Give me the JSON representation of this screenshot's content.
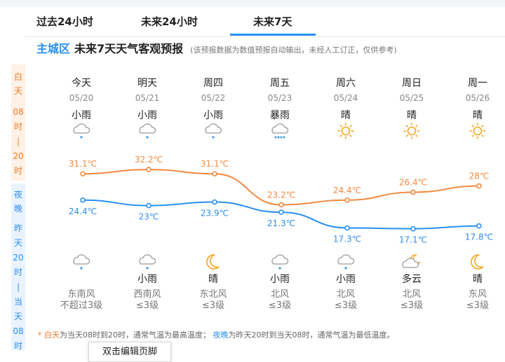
{
  "tabs": [
    "过去24小时",
    "未来24小时",
    "未来7天"
  ],
  "title": {
    "region": "主城区",
    "main": "未来7天天气客观预报",
    "note": "(该预报数据为数值预报自动输出，未经人工订正，仅供参考)"
  },
  "side": {
    "day": "白天",
    "day_time": [
      "08",
      "时",
      "|",
      "20",
      "时"
    ],
    "night": "夜晚",
    "night_time": [
      "昨",
      "天",
      "20",
      "时",
      "|",
      "当",
      "天",
      "08",
      "时"
    ]
  },
  "days": [
    {
      "name": "今天",
      "date": "05/20",
      "day_weather": "小雨",
      "day_icon": "light-rain-icon",
      "night_icon": "light-rain-night-icon",
      "night_weather": "",
      "wind_dir": "东南风",
      "wind_level": "不超过3级"
    },
    {
      "name": "明天",
      "date": "05/21",
      "day_weather": "小雨",
      "day_icon": "light-rain-icon",
      "night_icon": "light-rain-night-icon",
      "night_weather": "小雨",
      "wind_dir": "西南风",
      "wind_level": "≤3级"
    },
    {
      "name": "周四",
      "date": "05/22",
      "day_weather": "小雨",
      "day_icon": "light-rain-icon",
      "night_icon": "moon-icon",
      "night_weather": "晴",
      "wind_dir": "东北风",
      "wind_level": "≤3级"
    },
    {
      "name": "周五",
      "date": "05/23",
      "day_weather": "暴雨",
      "day_icon": "heavy-rain-icon",
      "night_icon": "light-rain-night-icon",
      "night_weather": "小雨",
      "wind_dir": "北风",
      "wind_level": "≤3级"
    },
    {
      "name": "周六",
      "date": "05/24",
      "day_weather": "晴",
      "day_icon": "sun-icon",
      "night_icon": "light-rain-night-icon",
      "night_weather": "小雨",
      "wind_dir": "北风",
      "wind_level": "≤3级"
    },
    {
      "name": "周日",
      "date": "05/25",
      "day_weather": "晴",
      "day_icon": "sun-icon",
      "night_icon": "cloudy-moon-icon",
      "night_weather": "多云",
      "wind_dir": "北风",
      "wind_level": "≤3级"
    },
    {
      "name": "周一",
      "date": "05/26",
      "day_weather": "晴",
      "day_icon": "sun-icon",
      "night_icon": "moon-icon",
      "night_weather": "晴",
      "wind_dir": "东风",
      "wind_level": "≤3级"
    }
  ],
  "colors": {
    "high": "#f28a3c",
    "low": "#2a8ff0",
    "accent": "#2a8ff0"
  },
  "chart_data": {
    "type": "line",
    "categories": [
      "05/20",
      "05/21",
      "05/22",
      "05/23",
      "05/24",
      "05/25",
      "05/26"
    ],
    "series": [
      {
        "values": [
          31.1,
          32.2,
          31.1,
          23.2,
          24.4,
          26.4,
          28
        ],
        "labels": [
          "31.1℃",
          "32.2℃",
          "31.1℃",
          "23.2℃",
          "24.4℃",
          "26.4℃",
          "28℃"
        ]
      },
      {
        "values": [
          24.4,
          23,
          23.9,
          21.3,
          17.3,
          17.1,
          17.8
        ],
        "labels": [
          "24.4℃",
          "23℃",
          "23.9℃",
          "21.3℃",
          "17.3℃",
          "17.1℃",
          "17.8℃"
        ]
      }
    ]
  },
  "footnote": {
    "star": "* ",
    "day_label": "白天",
    "day_text": "为当天08时到20时，通常气温为最高温度；",
    "night_label": "夜晚",
    "night_text": "为昨天20时到当天08时，通常气温为最低温度。"
  },
  "popup": "双击编辑页脚"
}
